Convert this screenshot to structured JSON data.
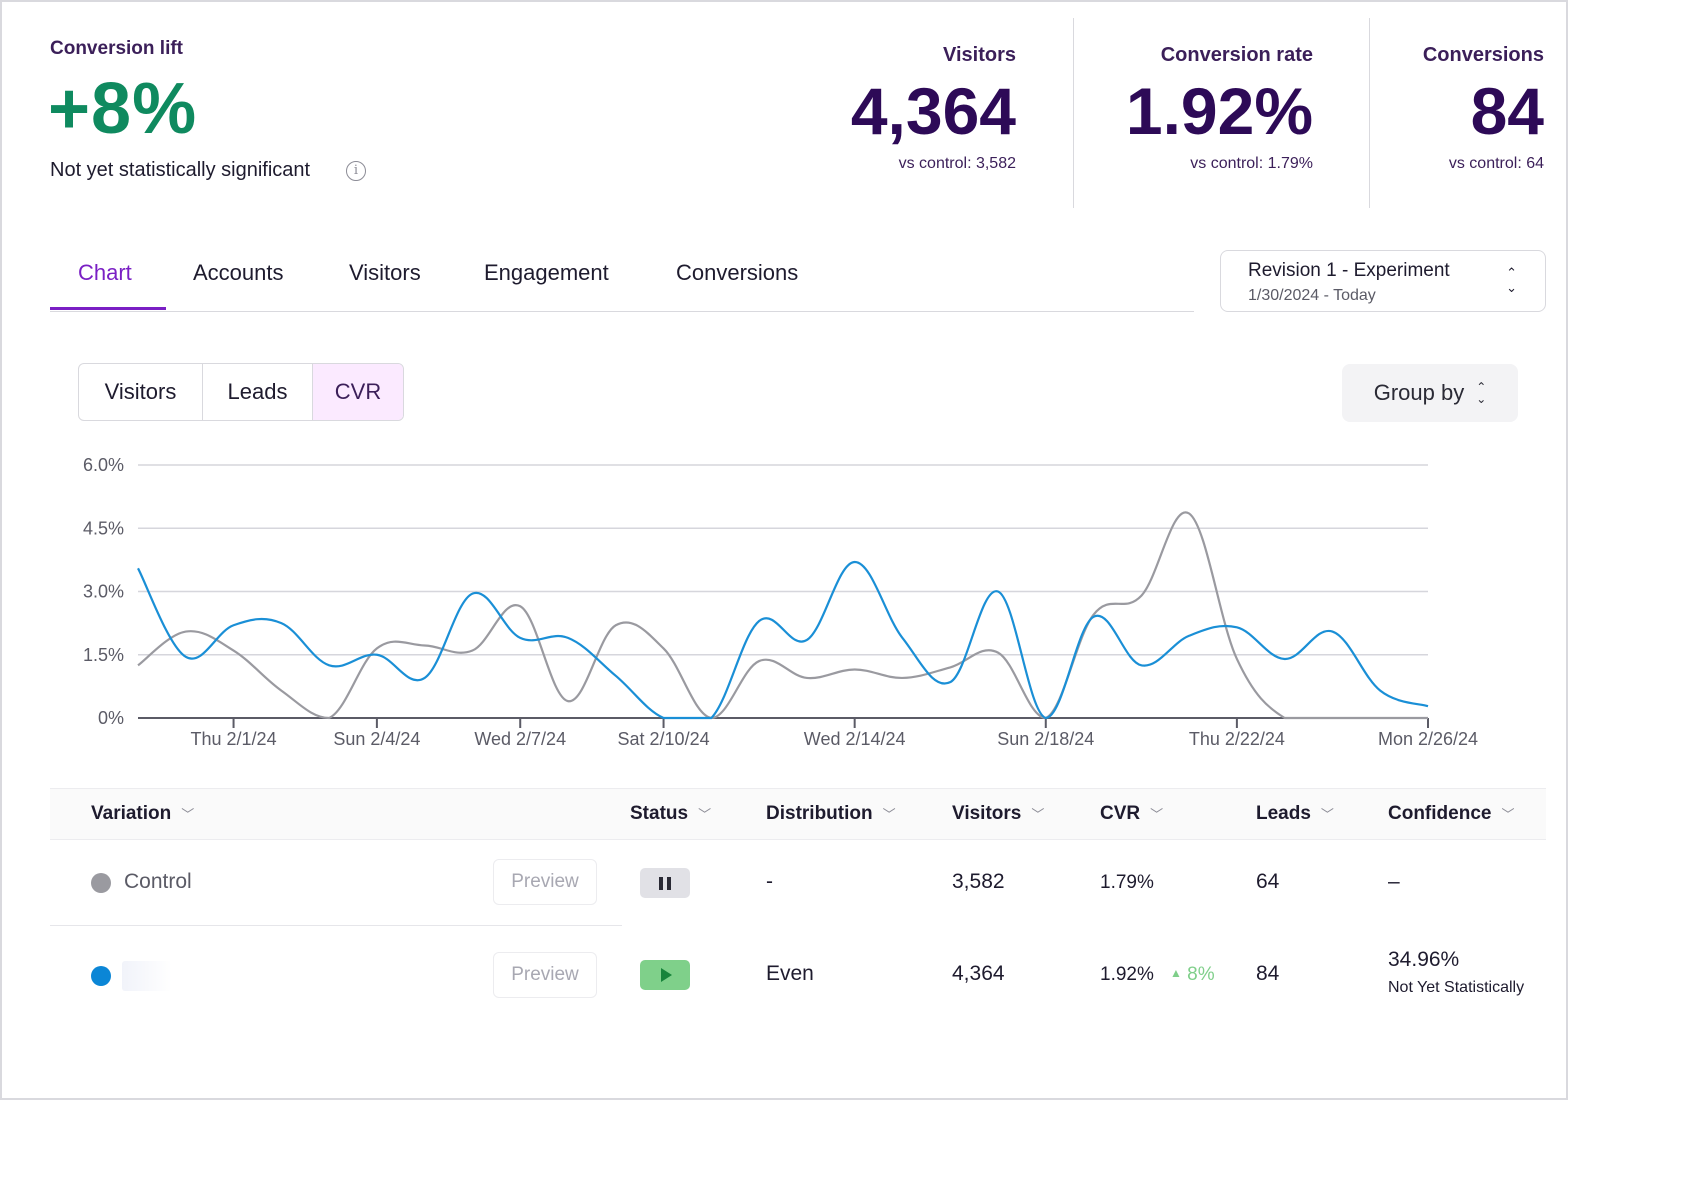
{
  "summary": {
    "lift_label": "Conversion lift",
    "lift_value": "+8%",
    "lift_note": "Not yet statistically significant",
    "info_icon": "info-icon"
  },
  "kpis": [
    {
      "label": "Visitors",
      "value": "4,364",
      "sub": "vs control: 3,582"
    },
    {
      "label": "Conversion rate",
      "value": "1.92%",
      "sub": "vs control: 1.79%"
    },
    {
      "label": "Conversions",
      "value": "84",
      "sub": "vs control: 64"
    }
  ],
  "tabs": [
    "Chart",
    "Accounts",
    "Visitors",
    "Engagement",
    "Conversions"
  ],
  "active_tab": "Chart",
  "revision": {
    "title": "Revision 1 - Experiment",
    "dates": "1/30/2024 - Today"
  },
  "metric_toggle": {
    "options": [
      "Visitors",
      "Leads",
      "CVR"
    ],
    "selected": "CVR"
  },
  "group_by": {
    "label": "Group by"
  },
  "colors": {
    "accent": "#7a1fc4",
    "positive": "#0f8a5f",
    "kpi": "#2d0a57",
    "experiment": "#1a8fd6",
    "control": "#9a9aa0"
  },
  "chart_data": {
    "type": "line",
    "ylim": [
      0,
      6.0
    ],
    "y_ticks": [
      "6.0%",
      "4.5%",
      "3.0%",
      "1.5%",
      "0%"
    ],
    "x_range": [
      "2024-01-30",
      "2024-02-26"
    ],
    "x_ticks": [
      {
        "date": "2024-02-01",
        "label": "Thu 2/1/24"
      },
      {
        "date": "2024-02-04",
        "label": "Sun 2/4/24"
      },
      {
        "date": "2024-02-07",
        "label": "Wed 2/7/24"
      },
      {
        "date": "2024-02-10",
        "label": "Sat 2/10/24"
      },
      {
        "date": "2024-02-14",
        "label": "Wed 2/14/24"
      },
      {
        "date": "2024-02-18",
        "label": "Sun 2/18/24"
      },
      {
        "date": "2024-02-22",
        "label": "Thu 2/22/24"
      },
      {
        "date": "2024-02-26",
        "label": "Mon 2/26/24"
      }
    ],
    "grid": true,
    "series": [
      {
        "id": "experiment",
        "color": "#1a8fd6",
        "points": [
          [
            "2024-01-30",
            3.55
          ],
          [
            "2024-01-31",
            1.45
          ],
          [
            "2024-02-01",
            2.2
          ],
          [
            "2024-02-02",
            2.25
          ],
          [
            "2024-02-03",
            1.25
          ],
          [
            "2024-02-04",
            1.5
          ],
          [
            "2024-02-05",
            0.95
          ],
          [
            "2024-02-06",
            2.95
          ],
          [
            "2024-02-07",
            1.9
          ],
          [
            "2024-02-08",
            1.9
          ],
          [
            "2024-02-09",
            1.0
          ],
          [
            "2024-02-10",
            0
          ],
          [
            "2024-02-11",
            0
          ],
          [
            "2024-02-12",
            2.3
          ],
          [
            "2024-02-13",
            1.85
          ],
          [
            "2024-02-14",
            3.7
          ],
          [
            "2024-02-15",
            1.9
          ],
          [
            "2024-02-16",
            0.85
          ],
          [
            "2024-02-17",
            3.0
          ],
          [
            "2024-02-18",
            0
          ],
          [
            "2024-02-19",
            2.4
          ],
          [
            "2024-02-20",
            1.25
          ],
          [
            "2024-02-21",
            1.95
          ],
          [
            "2024-02-22",
            2.15
          ],
          [
            "2024-02-23",
            1.4
          ],
          [
            "2024-02-24",
            2.05
          ],
          [
            "2024-02-25",
            0.65
          ],
          [
            "2024-02-26",
            0.28
          ]
        ]
      },
      {
        "id": "control",
        "color": "#9a9aa0",
        "points": [
          [
            "2024-01-30",
            1.25
          ],
          [
            "2024-01-31",
            2.05
          ],
          [
            "2024-02-01",
            1.6
          ],
          [
            "2024-02-02",
            0.65
          ],
          [
            "2024-02-03",
            0
          ],
          [
            "2024-02-04",
            1.65
          ],
          [
            "2024-02-05",
            1.72
          ],
          [
            "2024-02-06",
            1.6
          ],
          [
            "2024-02-07",
            2.65
          ],
          [
            "2024-02-08",
            0.4
          ],
          [
            "2024-02-09",
            2.2
          ],
          [
            "2024-02-10",
            1.65
          ],
          [
            "2024-02-11",
            0
          ],
          [
            "2024-02-12",
            1.35
          ],
          [
            "2024-02-13",
            0.95
          ],
          [
            "2024-02-14",
            1.15
          ],
          [
            "2024-02-15",
            0.95
          ],
          [
            "2024-02-16",
            1.2
          ],
          [
            "2024-02-17",
            1.55
          ],
          [
            "2024-02-18",
            0
          ],
          [
            "2024-02-19",
            2.45
          ],
          [
            "2024-02-20",
            2.9
          ],
          [
            "2024-02-21",
            4.85
          ],
          [
            "2024-02-22",
            1.4
          ],
          [
            "2024-02-23",
            0
          ],
          [
            "2024-02-24",
            0
          ],
          [
            "2024-02-25",
            0
          ],
          [
            "2024-02-26",
            0
          ]
        ]
      }
    ]
  },
  "table": {
    "headers": [
      "Variation",
      "Status",
      "Distribution",
      "Visitors",
      "CVR",
      "Leads",
      "Confidence"
    ],
    "preview_label": "Preview",
    "rows": [
      {
        "name": "Control",
        "dot_color": "#9a9aa0",
        "status": "paused",
        "distribution": "-",
        "visitors": "3,582",
        "cvr": "1.79%",
        "lift": "",
        "leads": "64",
        "confidence": "–",
        "confidence_note": ""
      },
      {
        "name": "",
        "dot_color": "#0b86d6",
        "status": "running",
        "distribution": "Even",
        "visitors": "4,364",
        "cvr": "1.92%",
        "lift": "8%",
        "leads": "84",
        "confidence": "34.96%",
        "confidence_note": "Not Yet Statistically"
      }
    ]
  }
}
